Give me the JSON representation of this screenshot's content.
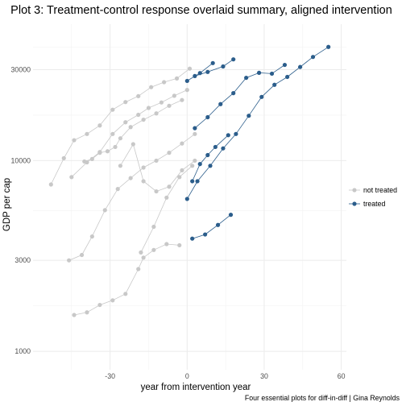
{
  "chart_data": {
    "type": "line",
    "title": "Plot 3: Treatment-control response overlaid summary, aligned intervention",
    "xlabel": "year from intervention year",
    "ylabel": "GDP per cap",
    "caption": "Four essential plots for diff-in-diff | Gina Reynolds",
    "y_scale": "log",
    "xlim": [
      -60,
      62
    ],
    "ylim": [
      800,
      52000
    ],
    "x_ticks": [
      -30,
      0,
      30,
      60
    ],
    "x_tick_labels": [
      "-30",
      "0",
      "30",
      "60"
    ],
    "y_ticks": [
      1000,
      3000,
      10000,
      30000
    ],
    "y_tick_labels": [
      "1000",
      "3000",
      "10000",
      "30000"
    ],
    "grid": true,
    "legend_position": "right",
    "legend": [
      {
        "label": "not treated",
        "color": "#c8c8c8"
      },
      {
        "label": "treated",
        "color": "#2b5d8b"
      }
    ],
    "series": [
      {
        "group": "not treated",
        "color": "#c8c8c8",
        "x": [
          -53,
          -48,
          -44,
          -39,
          -34,
          -29,
          -24,
          -19,
          -14,
          -9,
          -4,
          1
        ],
        "y": [
          7500,
          10300,
          12800,
          13800,
          15300,
          18500,
          20300,
          21800,
          24300,
          25800,
          27000,
          30400
        ]
      },
      {
        "group": "not treated",
        "color": "#c8c8c8",
        "x": [
          -45,
          -39,
          -34,
          -29,
          -24,
          -19,
          -15,
          -10,
          -5,
          0
        ],
        "y": [
          8200,
          9800,
          11100,
          13800,
          15900,
          17400,
          18900,
          20200,
          21900,
          23500
        ]
      },
      {
        "group": "not treated",
        "color": "#c8c8c8",
        "x": [
          -40,
          -37,
          -34,
          -31,
          -28,
          -26,
          -22,
          -17,
          -12,
          -7,
          -2
        ],
        "y": [
          9900,
          10200,
          11000,
          11200,
          11800,
          13100,
          15000,
          16400,
          17700,
          19400,
          20800
        ]
      },
      {
        "group": "not treated",
        "color": "#c8c8c8",
        "x": [
          -26,
          -21,
          -17,
          -12,
          -7,
          -2,
          3
        ],
        "y": [
          9400,
          12200,
          7800,
          6900,
          7300,
          8900,
          10000
        ]
      },
      {
        "group": "not treated",
        "color": "#c8c8c8",
        "x": [
          -46,
          -41,
          -37,
          -32,
          -27,
          -22,
          -17,
          -12,
          -7,
          -2,
          3
        ],
        "y": [
          3000,
          3200,
          4000,
          5500,
          7100,
          8100,
          9200,
          10000,
          11000,
          12300,
          13800
        ]
      },
      {
        "group": "not treated",
        "color": "#c8c8c8",
        "x": [
          -44,
          -39,
          -34,
          -29,
          -24,
          -19,
          -17,
          -13,
          -8,
          -3
        ],
        "y": [
          1550,
          1600,
          1750,
          1850,
          2000,
          2700,
          3100,
          3400,
          3650,
          3600
        ]
      },
      {
        "group": "not treated",
        "color": "#c8c8c8",
        "x": [
          -18,
          -13,
          -8,
          -3,
          2
        ],
        "y": [
          3300,
          4500,
          6400,
          8200,
          9400
        ]
      },
      {
        "group": "treated",
        "color": "#2b5d8b",
        "x": [
          2,
          7,
          12,
          17
        ],
        "y": [
          3900,
          4100,
          4600,
          5200
        ]
      },
      {
        "group": "treated",
        "color": "#2b5d8b",
        "x": [
          0,
          4,
          9,
          14,
          19,
          24,
          29,
          34,
          39,
          44,
          49,
          55
        ],
        "y": [
          6300,
          7800,
          9400,
          11600,
          13800,
          17200,
          21600,
          25000,
          27500,
          31000,
          35000,
          39500
        ]
      },
      {
        "group": "treated",
        "color": "#2b5d8b",
        "x": [
          3,
          8,
          13,
          18,
          23,
          28,
          33,
          38
        ],
        "y": [
          14800,
          16900,
          19800,
          22600,
          27200,
          28900,
          28600,
          31800
        ]
      },
      {
        "group": "treated",
        "color": "#2b5d8b",
        "x": [
          2,
          5,
          8,
          11,
          16
        ],
        "y": [
          7800,
          9600,
          10700,
          11800,
          13600
        ]
      },
      {
        "group": "treated",
        "color": "#2b5d8b",
        "x": [
          3,
          8,
          14,
          18
        ],
        "y": [
          27800,
          29200,
          31200,
          34000
        ]
      },
      {
        "group": "treated",
        "color": "#2b5d8b",
        "x": [
          0,
          5,
          10
        ],
        "y": [
          26200,
          28800,
          32500
        ]
      }
    ]
  }
}
